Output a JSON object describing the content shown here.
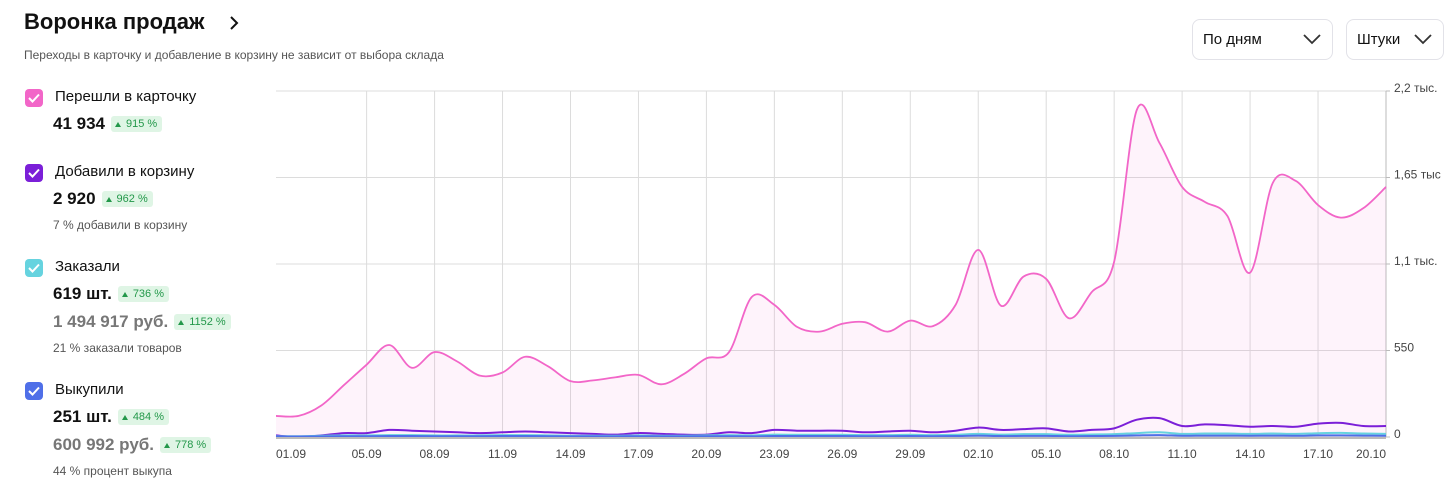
{
  "header": {
    "title": "Воронка продаж",
    "subtitle": "Переходы в карточку и добавление в корзину не зависит от выбора склада"
  },
  "controls": {
    "period": "По дням",
    "unit": "Штуки"
  },
  "metrics": [
    {
      "value": "41 934",
      "change": "915 %"
    },
    {
      "value": "2 920",
      "change": "962 %",
      "note": "7 % добавили в корзину"
    },
    {
      "value": "619 шт.",
      "change": "736 %",
      "revenue": "1 494 917 руб.",
      "revenue_change": "1152 %",
      "note": "21 % заказали товаров"
    },
    {
      "value": "251 шт.",
      "change": "484 %",
      "revenue": "600 992 руб.",
      "revenue_change": "778 %",
      "note": "44 % процент выкупа"
    }
  ],
  "chart_data": {
    "type": "line",
    "categories": [
      "01.09",
      null,
      null,
      null,
      "05.09",
      null,
      null,
      "08.09",
      null,
      null,
      "11.09",
      null,
      null,
      "14.09",
      null,
      null,
      "17.09",
      null,
      null,
      "20.09",
      null,
      null,
      "23.09",
      null,
      null,
      "26.09",
      null,
      null,
      "29.09",
      null,
      null,
      "02.10",
      null,
      null,
      "05.10",
      null,
      null,
      "08.10",
      null,
      null,
      "11.10",
      null,
      null,
      "14.10",
      null,
      null,
      "17.10",
      null,
      null,
      "20.10"
    ],
    "series": [
      {
        "name": "Перешли в карточку",
        "color": "#f266c8",
        "area": true,
        "values": [
          134,
          134,
          200,
          330,
          460,
          585,
          440,
          540,
          480,
          390,
          410,
          510,
          450,
          355,
          360,
          380,
          395,
          335,
          400,
          500,
          540,
          890,
          840,
          700,
          670,
          720,
          730,
          670,
          740,
          705,
          840,
          1190,
          835,
          1020,
          1005,
          755,
          920,
          1115,
          2080,
          1870,
          1590,
          1495,
          1405,
          1045,
          1615,
          1630,
          1475,
          1395,
          1455,
          1590
        ]
      },
      {
        "name": "Добавили в корзину",
        "color": "#7b1fd8",
        "values": [
          10,
          0,
          10,
          25,
          25,
          45,
          40,
          35,
          30,
          25,
          30,
          35,
          30,
          25,
          20,
          15,
          25,
          20,
          15,
          15,
          30,
          25,
          45,
          40,
          40,
          40,
          30,
          35,
          40,
          30,
          40,
          60,
          45,
          50,
          55,
          35,
          45,
          55,
          110,
          120,
          70,
          80,
          75,
          65,
          70,
          65,
          85,
          90,
          70,
          70
        ]
      },
      {
        "name": "Заказали",
        "color": "#66d3df",
        "values": [
          5,
          5,
          8,
          10,
          10,
          12,
          12,
          10,
          10,
          10,
          12,
          12,
          10,
          8,
          8,
          8,
          10,
          8,
          8,
          10,
          12,
          10,
          15,
          14,
          14,
          14,
          12,
          12,
          14,
          12,
          14,
          20,
          15,
          18,
          18,
          14,
          16,
          18,
          25,
          30,
          20,
          22,
          22,
          20,
          22,
          20,
          24,
          26,
          22,
          20
        ]
      },
      {
        "name": "Выкупили",
        "color": "#4f6fe8",
        "values": [
          3,
          3,
          4,
          5,
          5,
          6,
          6,
          5,
          5,
          5,
          6,
          6,
          5,
          4,
          4,
          4,
          5,
          4,
          4,
          5,
          5,
          4,
          6,
          6,
          6,
          6,
          5,
          5,
          6,
          5,
          6,
          9,
          6,
          7,
          7,
          5,
          6,
          7,
          10,
          12,
          8,
          9,
          9,
          8,
          9,
          8,
          10,
          10,
          9,
          8
        ]
      }
    ],
    "ylim": [
      0,
      2200
    ],
    "yticks": [
      0,
      550,
      {
        "value": 1100,
        "label": "1,1 тыс."
      },
      {
        "value": 1650,
        "label": "1,65 тыс"
      },
      {
        "value": 2200,
        "label": "2,2 тыс."
      }
    ],
    "grid": true
  }
}
